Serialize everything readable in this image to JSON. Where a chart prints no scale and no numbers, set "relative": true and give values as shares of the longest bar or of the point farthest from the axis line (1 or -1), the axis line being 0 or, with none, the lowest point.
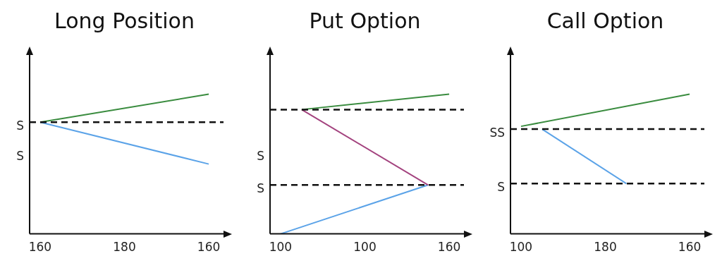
{
  "chart_data": [
    {
      "type": "line",
      "title": "Long Position",
      "relative": true,
      "tick_labels": "x",
      "grid": false,
      "legend": false,
      "marker": "none",
      "line_style": "solid",
      "categories": [
        "160",
        null,
        null,
        null,
        "180",
        null,
        null,
        null,
        "160"
      ],
      "series": [
        {
          "color": "#3a8c3f",
          "values": [
            0.8,
            null,
            null,
            null,
            null,
            null,
            null,
            null,
            1
          ]
        },
        {
          "color": "#5ba3e8",
          "values": [
            0.8,
            null,
            null,
            null,
            null,
            null,
            null,
            null,
            0.5
          ]
        }
      ],
      "ref_lines": [
        {
          "axis": "y",
          "value": 0.8,
          "label": "S",
          "color": "#111111",
          "line_style": "dashed"
        }
      ],
      "annotations": [
        "S"
      ]
    },
    {
      "type": "line",
      "title": "Put Option",
      "relative": true,
      "tick_labels": "x",
      "grid": false,
      "legend": false,
      "marker": "none",
      "line_style": "solid",
      "categories": [
        "100",
        null,
        null,
        null,
        "100",
        null,
        null,
        null,
        "160"
      ],
      "series": [
        {
          "color": "#3a8c3f",
          "values": [
            null,
            0.89,
            null,
            null,
            null,
            null,
            null,
            null,
            1
          ]
        },
        {
          "color": "#a3427e",
          "values": [
            null,
            0.89,
            null,
            null,
            null,
            null,
            null,
            0.35,
            null
          ]
        },
        {
          "color": "#5ba3e8",
          "values": [
            0,
            null,
            null,
            null,
            null,
            null,
            null,
            0.35,
            null
          ]
        }
      ],
      "ref_lines": [
        {
          "axis": "y",
          "value": 0.89,
          "label": null,
          "color": "#111111",
          "line_style": "dashed"
        },
        {
          "axis": "y",
          "value": 0.35,
          "label": "S",
          "color": "#111111",
          "line_style": "dashed"
        }
      ],
      "annotations": [
        "S"
      ]
    },
    {
      "type": "line",
      "title": "Call Option",
      "relative": true,
      "tick_labels": "x",
      "grid": false,
      "legend": false,
      "marker": "none",
      "line_style": "solid",
      "categories": [
        "100",
        null,
        null,
        null,
        "180",
        null,
        null,
        null,
        "160"
      ],
      "series": [
        {
          "color": "#3a8c3f",
          "values": [
            0.77,
            null,
            null,
            null,
            null,
            null,
            null,
            null,
            1
          ]
        },
        {
          "color": "#5ba3e8",
          "values": [
            null,
            0.75,
            null,
            null,
            null,
            0.36,
            null,
            null,
            null
          ]
        }
      ],
      "ref_lines": [
        {
          "axis": "y",
          "value": 0.75,
          "label": "SS",
          "color": "#111111",
          "line_style": "dashed"
        },
        {
          "axis": "y",
          "value": 0.36,
          "label": "S",
          "color": "#111111",
          "line_style": "dashed"
        }
      ]
    }
  ]
}
